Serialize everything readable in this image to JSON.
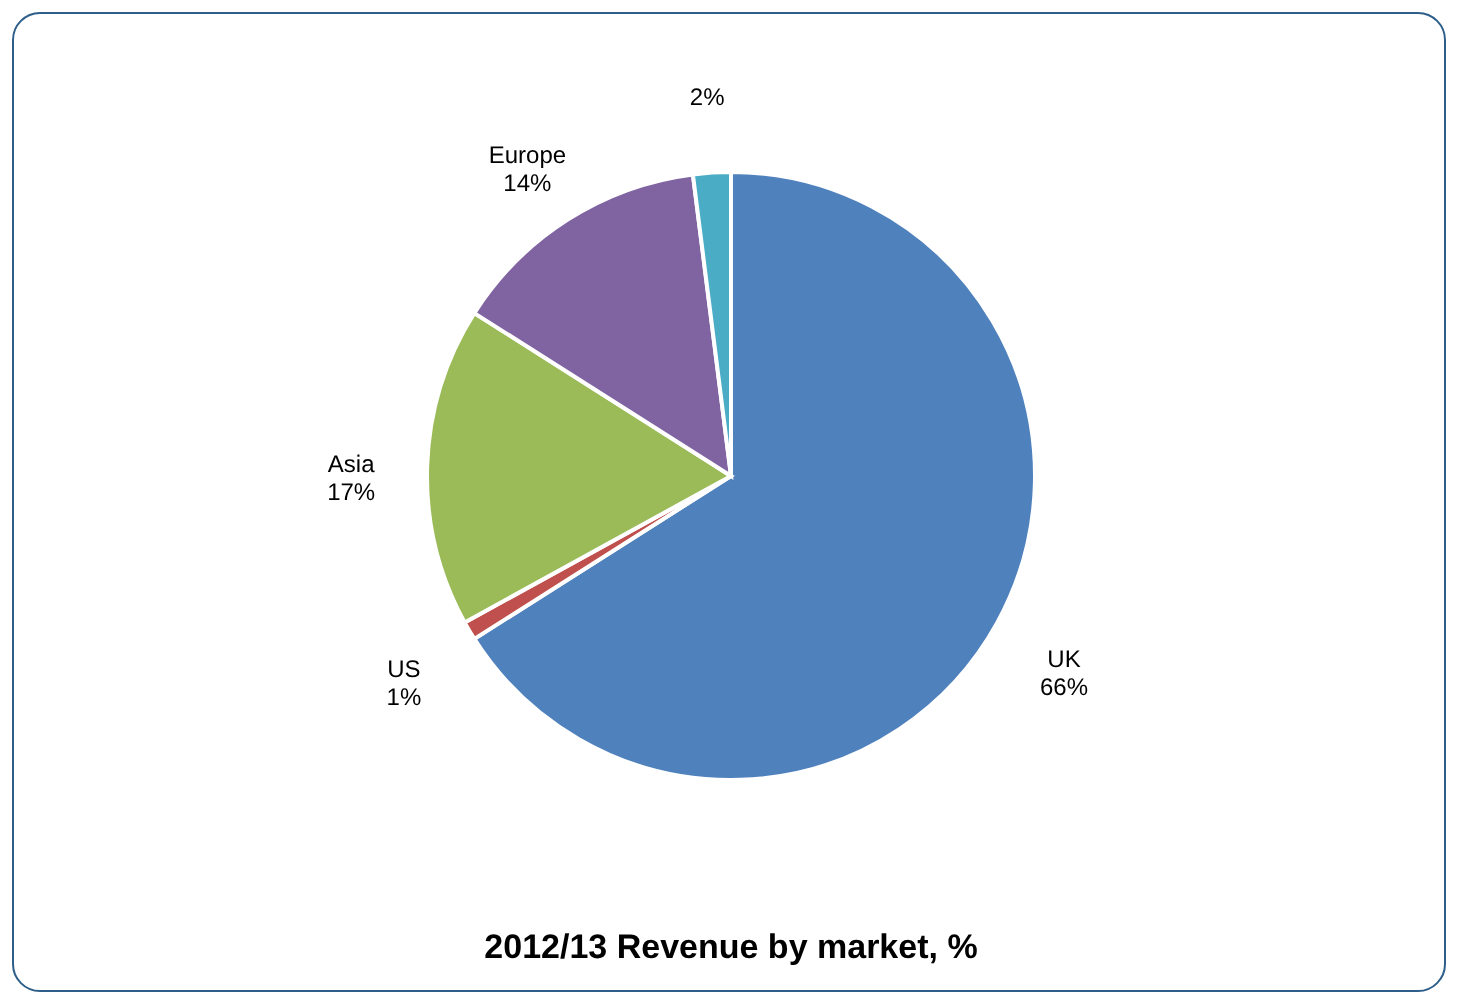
{
  "chart_data": {
    "type": "pie",
    "title": "2012/13 Revenue by market, %",
    "categories": [
      "UK",
      "US",
      "Asia",
      "Europe",
      null
    ],
    "values": [
      66,
      1,
      17,
      14,
      2
    ],
    "value_labels": [
      "66%",
      "1%",
      "17%",
      "14%",
      "2%"
    ],
    "colors": [
      "#4f81bd",
      "#c0504d",
      "#9bbb59",
      "#8064a2",
      "#4bacc6"
    ]
  }
}
